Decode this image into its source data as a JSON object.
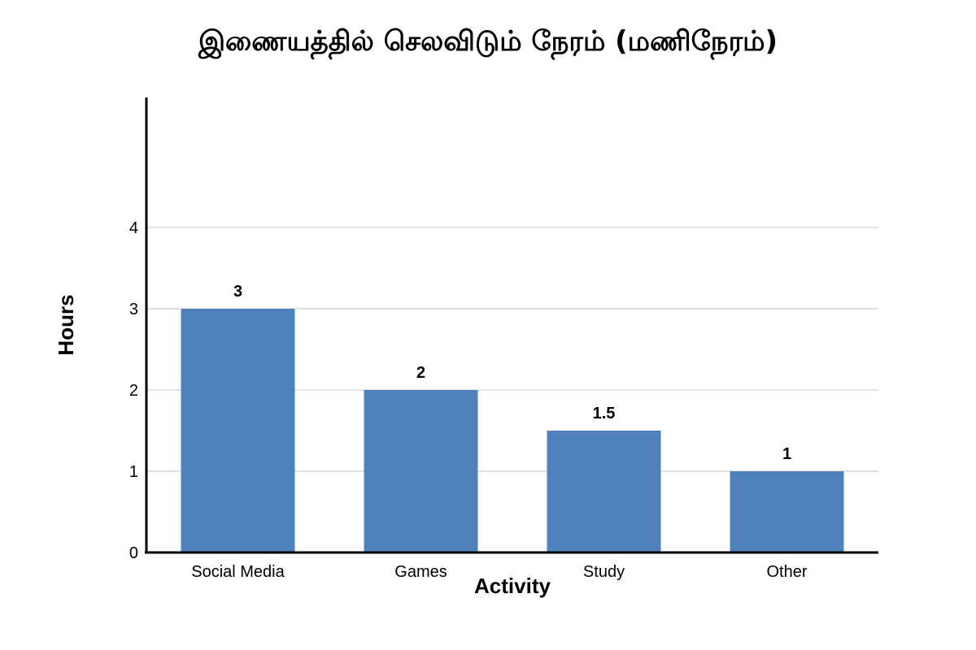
{
  "chart_data": {
    "type": "bar",
    "title": "இணையத்தில் செலவிடும் நேரம் (மணிநேரம்)",
    "xlabel": "Activity",
    "ylabel": "Hours",
    "categories": [
      "Social Media",
      "Games",
      "Study",
      "Other"
    ],
    "values": [
      3,
      2,
      1.5,
      1
    ],
    "data_labels": [
      "3",
      "2",
      "1.5",
      "1"
    ],
    "y_ticks": [
      0,
      1,
      2,
      3,
      4
    ],
    "ylim": [
      0,
      5.4
    ],
    "grid": true,
    "legend": "none",
    "colors": {
      "bar": "#4f81bd",
      "grid": "#d9d9d9",
      "axis": "#000000"
    }
  }
}
